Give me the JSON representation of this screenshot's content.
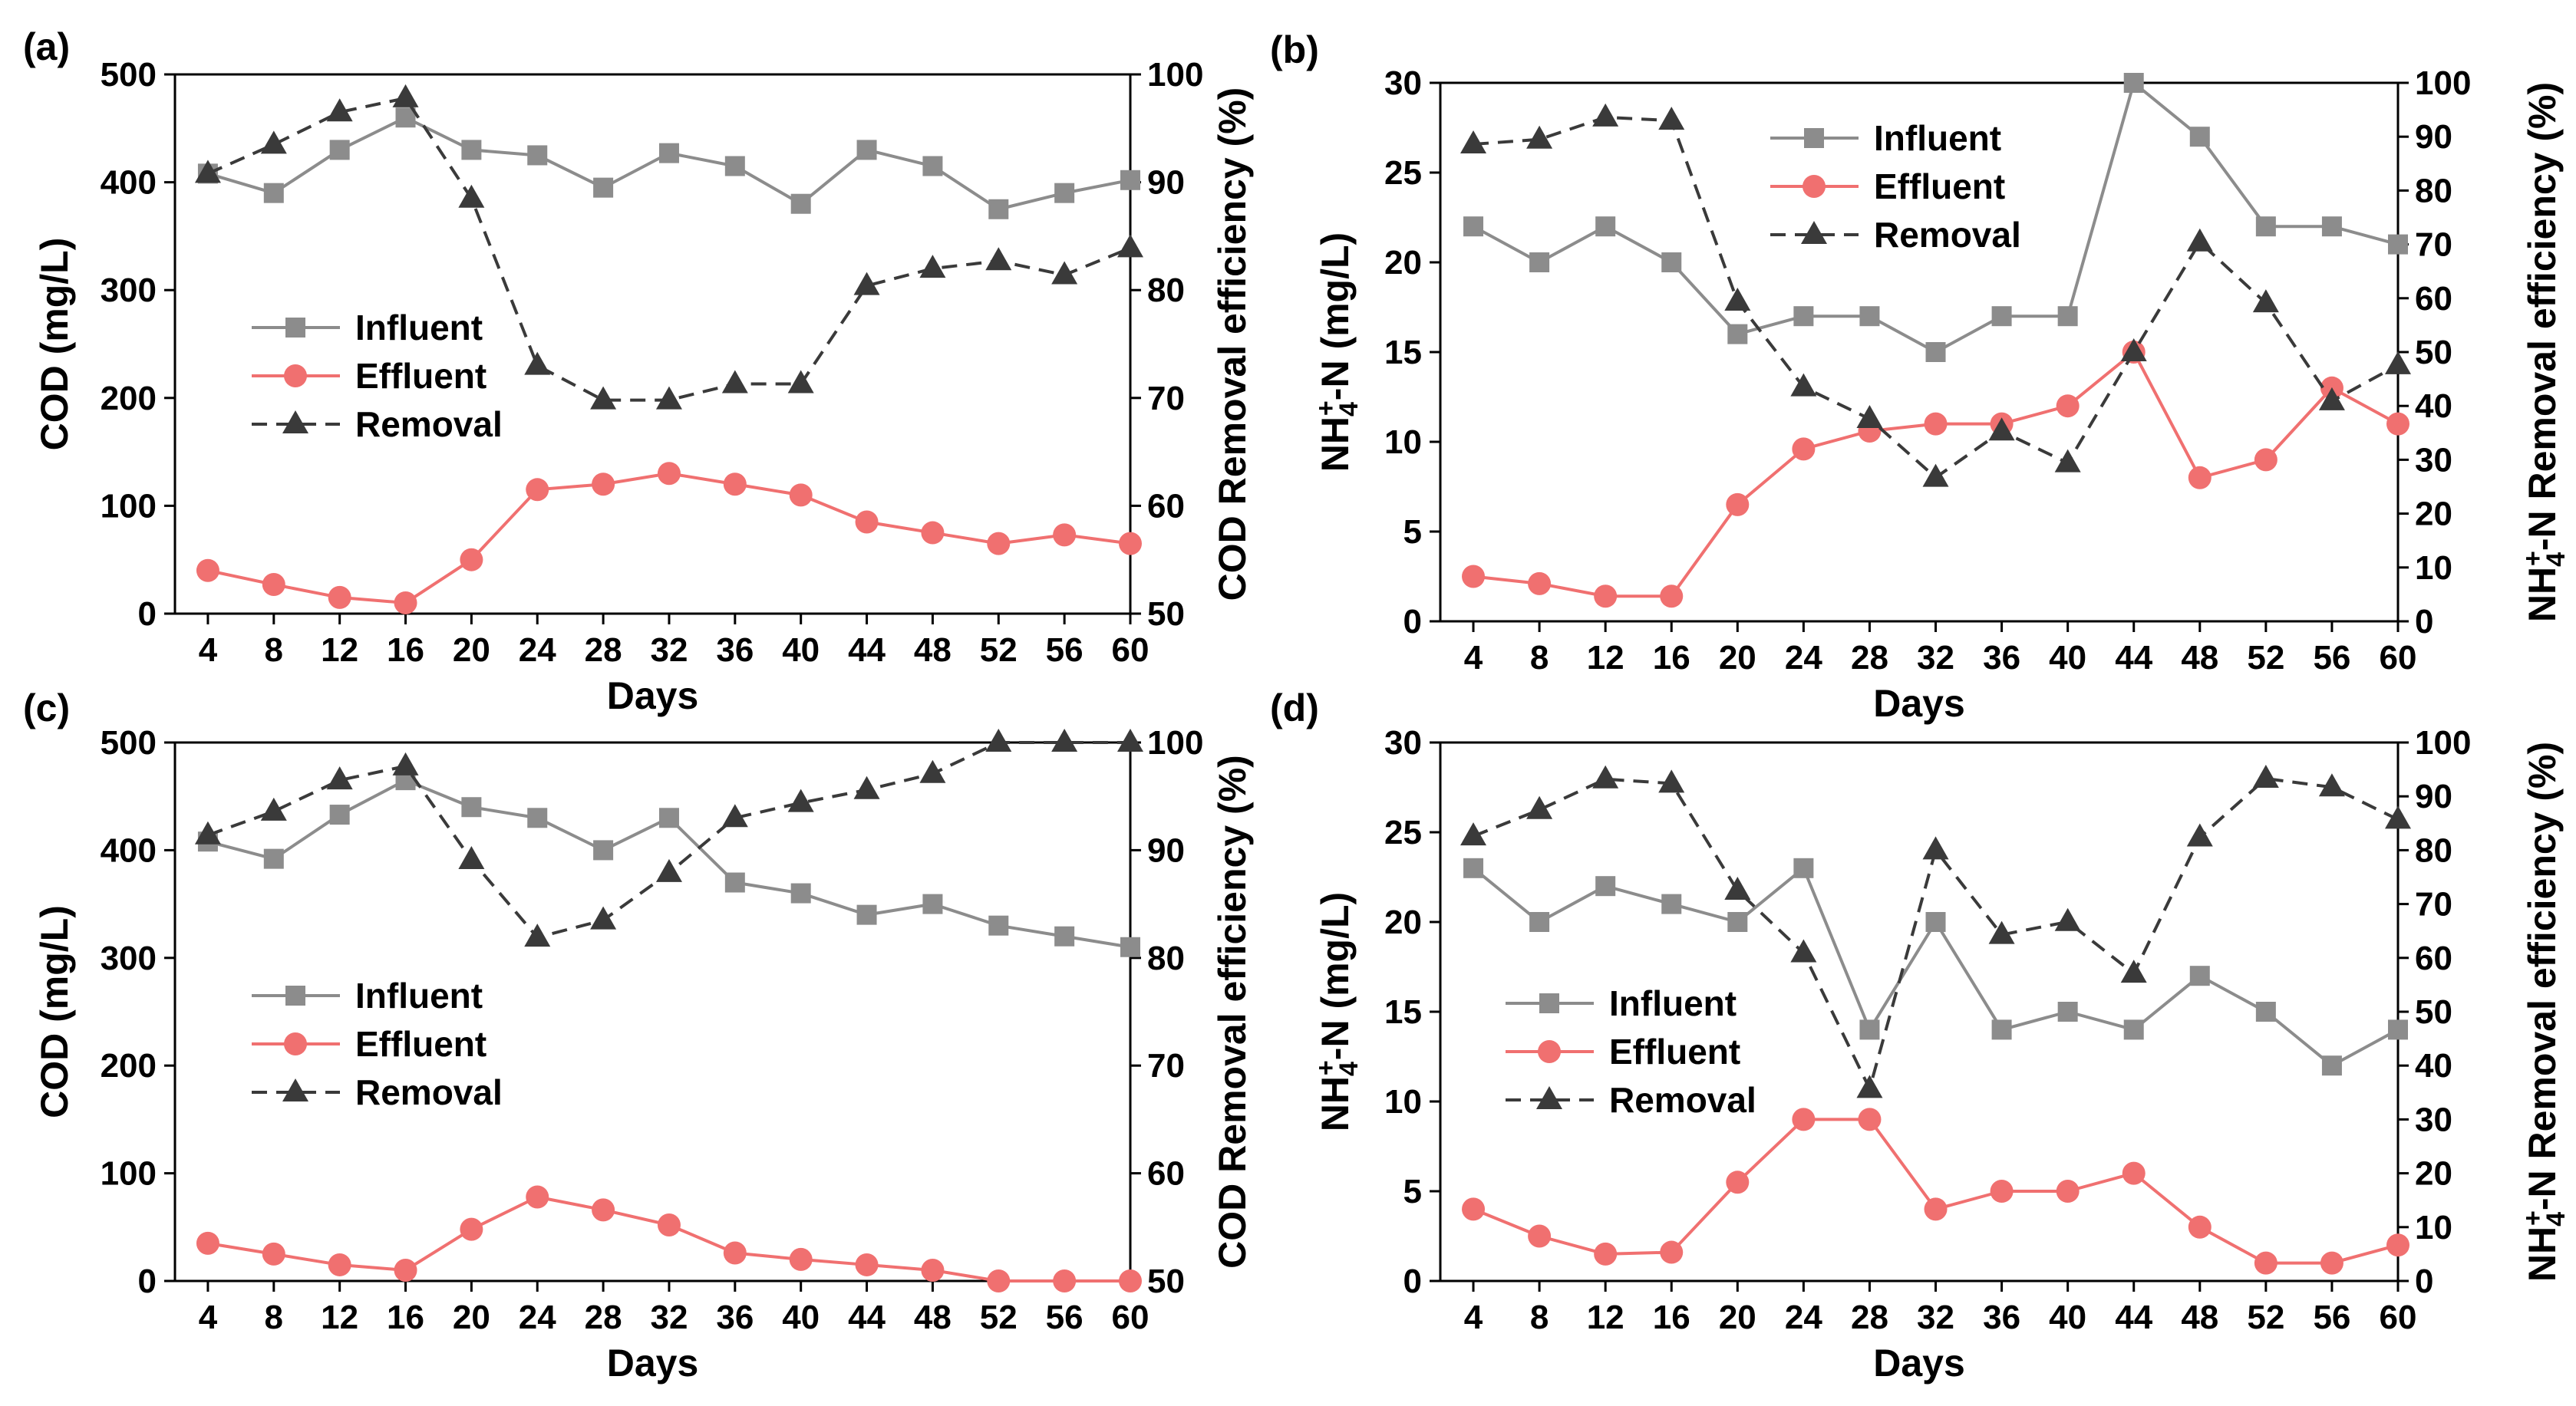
{
  "chart_data": [
    {
      "panel_label": "(a)",
      "type": "line",
      "xlabel": "Days",
      "ylabel": "COD (mg/L)",
      "y2label": "COD Removal efficiency (%)",
      "x": [
        4,
        8,
        12,
        16,
        20,
        24,
        28,
        32,
        36,
        40,
        44,
        48,
        52,
        56,
        60
      ],
      "ylim": [
        0,
        500
      ],
      "y2lim": [
        50,
        100
      ],
      "yticks": [
        0,
        100,
        200,
        300,
        400,
        500
      ],
      "y2ticks": [
        50,
        60,
        70,
        80,
        90,
        100
      ],
      "legend_position": "center-left",
      "series": [
        {
          "name": "Influent",
          "axis": "left",
          "color": "#8c8c8c",
          "marker": "square",
          "dash": false,
          "values": [
            408,
            390,
            430,
            460,
            430,
            425,
            395,
            427,
            415,
            380,
            430,
            415,
            375,
            390,
            402
          ]
        },
        {
          "name": "Effluent",
          "axis": "left",
          "color": "#f07070",
          "marker": "circle",
          "dash": false,
          "values": [
            40,
            27,
            15,
            10,
            50,
            115,
            120,
            130,
            120,
            110,
            85,
            75,
            65,
            73,
            65
          ]
        },
        {
          "name": "Removal",
          "axis": "right",
          "color": "#3a3a3a",
          "marker": "triangle",
          "dash": true,
          "values": [
            90.8,
            93.5,
            96.5,
            97.8,
            88.5,
            73,
            69.8,
            69.8,
            71.3,
            71.3,
            80.4,
            82.0,
            82.7,
            81.4,
            83.9
          ]
        }
      ]
    },
    {
      "panel_label": "(b)",
      "type": "line",
      "xlabel": "Days",
      "ylabel": "NH4+-N (mg/L)",
      "y2label": "NH4+-N Removal efficiency (%)",
      "x": [
        4,
        8,
        12,
        16,
        20,
        24,
        28,
        32,
        36,
        40,
        44,
        48,
        52,
        56,
        60
      ],
      "ylim": [
        0,
        30
      ],
      "y2lim": [
        0,
        100
      ],
      "yticks": [
        0,
        5,
        10,
        15,
        20,
        25,
        30
      ],
      "y2ticks": [
        0,
        10,
        20,
        30,
        40,
        50,
        60,
        70,
        80,
        90,
        100
      ],
      "legend_position": "top-center",
      "series": [
        {
          "name": "Influent",
          "axis": "left",
          "color": "#8c8c8c",
          "marker": "square",
          "dash": false,
          "values": [
            22,
            20,
            22,
            20,
            16,
            17,
            17,
            15,
            17,
            17,
            30,
            27,
            22,
            22,
            21
          ]
        },
        {
          "name": "Effluent",
          "axis": "left",
          "color": "#f07070",
          "marker": "circle",
          "dash": false,
          "values": [
            2.5,
            2.1,
            1.4,
            1.4,
            6.5,
            9.6,
            10.6,
            11,
            11,
            12,
            15,
            8,
            9,
            13,
            11
          ]
        },
        {
          "name": "Removal",
          "axis": "right",
          "color": "#3a3a3a",
          "marker": "triangle",
          "dash": true,
          "values": [
            88.6,
            89.5,
            93.6,
            93,
            59.4,
            43.5,
            37.6,
            26.7,
            35.3,
            29.4,
            50,
            70.4,
            59.1,
            40.9,
            47.6
          ]
        }
      ]
    },
    {
      "panel_label": "(c)",
      "type": "line",
      "xlabel": "Days",
      "ylabel": "COD (mg/L)",
      "y2label": "COD Removal efficiency (%)",
      "x": [
        4,
        8,
        12,
        16,
        20,
        24,
        28,
        32,
        36,
        40,
        44,
        48,
        52,
        56,
        60
      ],
      "ylim": [
        0,
        500
      ],
      "y2lim": [
        50,
        100
      ],
      "yticks": [
        0,
        100,
        200,
        300,
        400,
        500
      ],
      "y2ticks": [
        50,
        60,
        70,
        80,
        90,
        100
      ],
      "legend_position": "center-left",
      "series": [
        {
          "name": "Influent",
          "axis": "left",
          "color": "#8c8c8c",
          "marker": "square",
          "dash": false,
          "values": [
            408,
            392,
            433,
            465,
            440,
            430,
            400,
            430,
            370,
            360,
            340,
            350,
            330,
            320,
            310
          ]
        },
        {
          "name": "Effluent",
          "axis": "left",
          "color": "#f07070",
          "marker": "circle",
          "dash": false,
          "values": [
            35,
            25,
            15,
            10,
            48,
            78,
            66,
            52,
            26,
            20,
            15,
            10,
            0,
            0,
            0
          ]
        },
        {
          "name": "Removal",
          "axis": "right",
          "color": "#3a3a3a",
          "marker": "triangle",
          "dash": true,
          "values": [
            91.4,
            93.6,
            96.5,
            97.8,
            89.1,
            81.9,
            83.5,
            87.9,
            93.0,
            94.4,
            95.6,
            97.1,
            100,
            100,
            100
          ]
        }
      ]
    },
    {
      "panel_label": "(d)",
      "type": "line",
      "xlabel": "Days",
      "ylabel": "NH4+-N (mg/L)",
      "y2label": "NH4+-N Removal efficiency (%)",
      "x": [
        4,
        8,
        12,
        16,
        20,
        24,
        28,
        32,
        36,
        40,
        44,
        48,
        52,
        56,
        60
      ],
      "ylim": [
        0,
        30
      ],
      "y2lim": [
        0,
        100
      ],
      "yticks": [
        0,
        5,
        10,
        15,
        20,
        25,
        30
      ],
      "y2ticks": [
        0,
        10,
        20,
        30,
        40,
        50,
        60,
        70,
        80,
        90,
        100
      ],
      "legend_position": "center-left",
      "series": [
        {
          "name": "Influent",
          "axis": "left",
          "color": "#8c8c8c",
          "marker": "square",
          "dash": false,
          "values": [
            23,
            20,
            22,
            21,
            20,
            23,
            14,
            20,
            14,
            15,
            14,
            17,
            15,
            12,
            14
          ]
        },
        {
          "name": "Effluent",
          "axis": "left",
          "color": "#f07070",
          "marker": "circle",
          "dash": false,
          "values": [
            4,
            2.5,
            1.5,
            1.6,
            5.5,
            9,
            9,
            4,
            5,
            5,
            6,
            3,
            1,
            1,
            2
          ]
        },
        {
          "name": "Removal",
          "axis": "right",
          "color": "#3a3a3a",
          "marker": "triangle",
          "dash": true,
          "values": [
            82.6,
            87.5,
            93.2,
            92.4,
            72.5,
            60.9,
            35.7,
            80,
            64.3,
            66.7,
            57.1,
            82.4,
            93.3,
            91.7,
            85.7
          ]
        }
      ]
    }
  ]
}
